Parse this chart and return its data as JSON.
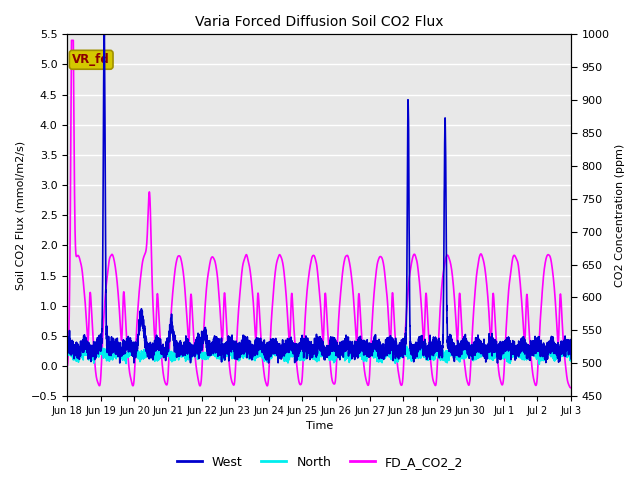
{
  "title": "Varia Forced Diffusion Soil CO2 Flux",
  "ylabel_left": "Soil CO2 Flux (mmol/m2/s)",
  "ylabel_right": "CO2 Concentration (ppm)",
  "xlabel": "Time",
  "ylim_left": [
    -0.5,
    5.5
  ],
  "ylim_right": [
    450,
    1000
  ],
  "yticks_left": [
    -0.5,
    0.0,
    0.5,
    1.0,
    1.5,
    2.0,
    2.5,
    3.0,
    3.5,
    4.0,
    4.5,
    5.0,
    5.5
  ],
  "yticks_right": [
    450,
    500,
    550,
    600,
    650,
    700,
    750,
    800,
    850,
    900,
    950,
    1000
  ],
  "bg_color": "#e8e8e8",
  "fig_color": "#ffffff",
  "label_box": "VR_fd",
  "label_box_color": "#d4c800",
  "label_box_edge_color": "#a09000",
  "label_box_text_color": "#8b0000",
  "west_color": "#0000cd",
  "north_color": "#00eeee",
  "co2_color": "#ff00ff",
  "west_label": "West",
  "north_label": "North",
  "co2_label": "FD_A_CO2_2",
  "west_linewidth": 1.2,
  "north_linewidth": 1.2,
  "co2_linewidth": 1.2,
  "grid_color": "#ffffff",
  "tick_labels": [
    "Jun 18",
    "Jun 19",
    "Jun 20",
    "Jun 21",
    "Jun 22",
    "Jun 23",
    "Jun 24",
    "Jun 25",
    "Jun 26",
    "Jun 27",
    "Jun 28",
    "Jun 29",
    "Jun 30",
    "Jul 1",
    "Jul 2",
    "Jul 3"
  ]
}
